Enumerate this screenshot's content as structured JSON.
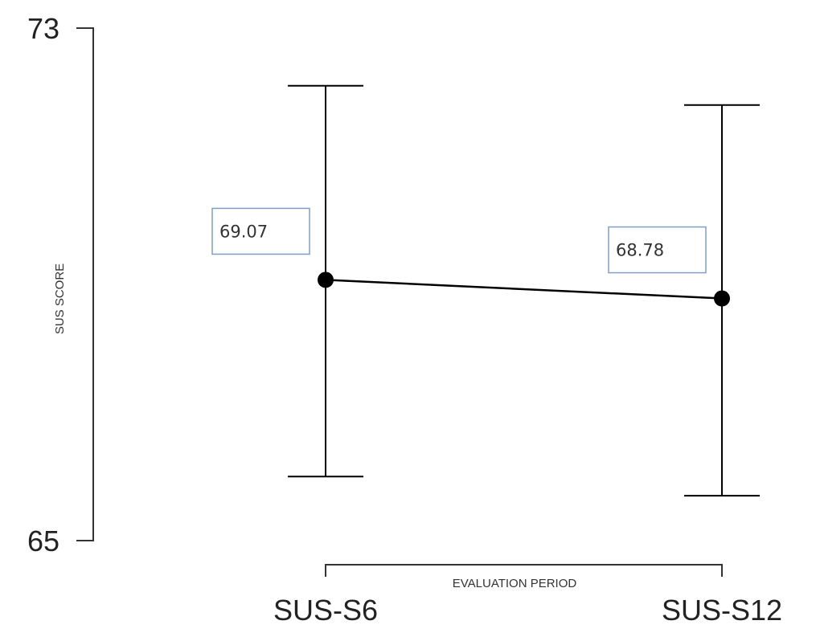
{
  "chart_data": {
    "type": "line",
    "title": "",
    "xlabel": "EVALUATION PERIOD",
    "ylabel": "SUS SCORE",
    "ylim": [
      65,
      73
    ],
    "y_ticks": [
      "73",
      "65"
    ],
    "categories": [
      "SUS-S6",
      "SUS-S12"
    ],
    "series": [
      {
        "values": [
          69.07,
          68.78
        ],
        "labels": [
          "69.07",
          "68.78"
        ],
        "error_low": [
          66.0,
          65.7
        ],
        "error_high": [
          72.1,
          71.8
        ]
      }
    ],
    "grid": false,
    "legend": "none",
    "colors": {
      "line": "#000000",
      "axis": "#333333",
      "label_box": "#7f9fc4"
    }
  }
}
